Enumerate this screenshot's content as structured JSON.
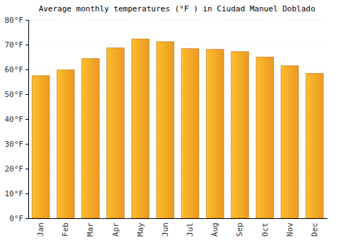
{
  "chart_data": {
    "type": "bar",
    "title": "Average monthly temperatures (°F ) in Ciudad Manuel Doblado",
    "categories": [
      "Jan",
      "Feb",
      "Mar",
      "Apr",
      "May",
      "Jun",
      "Jul",
      "Aug",
      "Sep",
      "Oct",
      "Nov",
      "Dec"
    ],
    "values": [
      57.5,
      59.8,
      64.4,
      68.7,
      72.3,
      71.2,
      68.4,
      68.1,
      67.2,
      65.0,
      61.5,
      58.4
    ],
    "color": "#ffa726",
    "ylim": [
      0,
      80
    ],
    "yticks": [
      {
        "value": 0,
        "label": "0°F"
      },
      {
        "value": 10,
        "label": "10°F"
      },
      {
        "value": 20,
        "label": "20°F"
      },
      {
        "value": 30,
        "label": "30°F"
      },
      {
        "value": 40,
        "label": "40°F"
      },
      {
        "value": 50,
        "label": "50°F"
      },
      {
        "value": 60,
        "label": "60°F"
      },
      {
        "value": 70,
        "label": "70°F"
      },
      {
        "value": 80,
        "label": "80°F"
      }
    ],
    "grid": true
  }
}
